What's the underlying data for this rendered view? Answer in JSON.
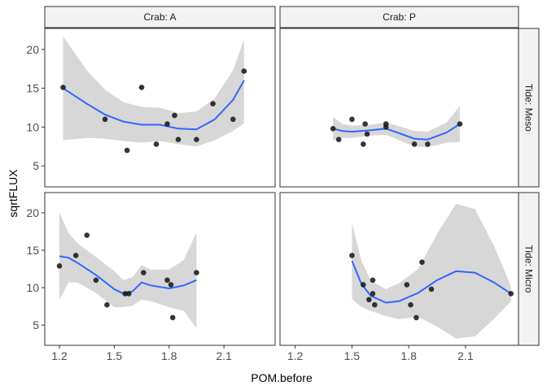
{
  "chart_data": {
    "type": "scatter",
    "facet_cols": [
      "Crab: A",
      "Crab: P"
    ],
    "facet_rows": [
      "Tide: Meso",
      "Tide: Micro"
    ],
    "xlabel": "POM.before",
    "ylabel": "sqrtFLUX",
    "xlim": [
      1.12,
      2.38
    ],
    "ylim": [
      2.3,
      22.7
    ],
    "x_ticks": [
      1.2,
      1.5,
      1.8,
      2.1
    ],
    "x_tick_labels": [
      "1.2",
      "1.5",
      "1.8",
      "2.1"
    ],
    "y_ticks": [
      5,
      10,
      15,
      20
    ],
    "y_tick_labels": [
      "5",
      "10",
      "15",
      "20"
    ],
    "smooth": "loess",
    "grid": false,
    "colors": {
      "points": "#1a1a1a",
      "smooth_line": "#3366ff",
      "ribbon": "#d3d3d3",
      "strip_fill": "#f2f2f2",
      "panel_border": "#333333"
    },
    "panels": [
      {
        "col": "Crab: A",
        "row": "Tide: Meso",
        "points": [
          {
            "x": 1.22,
            "y": 15.1
          },
          {
            "x": 1.45,
            "y": 11.0
          },
          {
            "x": 1.57,
            "y": 7.0
          },
          {
            "x": 1.65,
            "y": 15.1
          },
          {
            "x": 1.73,
            "y": 7.8
          },
          {
            "x": 1.79,
            "y": 10.4
          },
          {
            "x": 1.83,
            "y": 11.5
          },
          {
            "x": 1.85,
            "y": 8.4
          },
          {
            "x": 1.95,
            "y": 8.4
          },
          {
            "x": 2.04,
            "y": 13.0
          },
          {
            "x": 2.15,
            "y": 11.0
          },
          {
            "x": 2.21,
            "y": 17.2
          }
        ],
        "smooth": [
          {
            "x": 1.22,
            "y": 15.0,
            "lo": 8.3,
            "hi": 21.7
          },
          {
            "x": 1.35,
            "y": 13.0,
            "lo": 8.6,
            "hi": 17.3
          },
          {
            "x": 1.45,
            "y": 11.6,
            "lo": 8.5,
            "hi": 14.8
          },
          {
            "x": 1.55,
            "y": 10.7,
            "lo": 8.2,
            "hi": 13.2
          },
          {
            "x": 1.65,
            "y": 10.3,
            "lo": 8.0,
            "hi": 12.6
          },
          {
            "x": 1.75,
            "y": 10.3,
            "lo": 8.2,
            "hi": 12.5
          },
          {
            "x": 1.85,
            "y": 9.8,
            "lo": 7.8,
            "hi": 11.8
          },
          {
            "x": 1.95,
            "y": 9.7,
            "lo": 7.5,
            "hi": 12.0
          },
          {
            "x": 2.05,
            "y": 11.0,
            "lo": 8.3,
            "hi": 13.7
          },
          {
            "x": 2.15,
            "y": 13.5,
            "lo": 9.5,
            "hi": 17.3
          },
          {
            "x": 2.21,
            "y": 16.0,
            "lo": 10.5,
            "hi": 21.3
          }
        ]
      },
      {
        "col": "Crab: P",
        "row": "Tide: Meso",
        "points": [
          {
            "x": 1.4,
            "y": 9.8
          },
          {
            "x": 1.43,
            "y": 8.4
          },
          {
            "x": 1.5,
            "y": 11.0
          },
          {
            "x": 1.56,
            "y": 7.8
          },
          {
            "x": 1.57,
            "y": 10.4
          },
          {
            "x": 1.58,
            "y": 9.1
          },
          {
            "x": 1.68,
            "y": 10.4
          },
          {
            "x": 1.68,
            "y": 10.0
          },
          {
            "x": 1.83,
            "y": 7.8
          },
          {
            "x": 1.9,
            "y": 7.8
          },
          {
            "x": 2.07,
            "y": 10.4
          }
        ],
        "smooth": [
          {
            "x": 1.4,
            "y": 9.8,
            "lo": 8.3,
            "hi": 11.3
          },
          {
            "x": 1.45,
            "y": 9.5,
            "lo": 8.6,
            "hi": 10.4
          },
          {
            "x": 1.5,
            "y": 9.4,
            "lo": 8.6,
            "hi": 10.2
          },
          {
            "x": 1.6,
            "y": 9.6,
            "lo": 8.9,
            "hi": 10.3
          },
          {
            "x": 1.68,
            "y": 9.8,
            "lo": 9.0,
            "hi": 10.6
          },
          {
            "x": 1.75,
            "y": 9.2,
            "lo": 8.3,
            "hi": 10.1
          },
          {
            "x": 1.83,
            "y": 8.5,
            "lo": 7.5,
            "hi": 9.5
          },
          {
            "x": 1.9,
            "y": 8.4,
            "lo": 7.4,
            "hi": 9.4
          },
          {
            "x": 2.0,
            "y": 9.3,
            "lo": 8.0,
            "hi": 10.6
          },
          {
            "x": 2.07,
            "y": 10.4,
            "lo": 8.1,
            "hi": 12.7
          }
        ]
      },
      {
        "col": "Crab: A",
        "row": "Tide: Micro",
        "points": [
          {
            "x": 1.2,
            "y": 12.9
          },
          {
            "x": 1.29,
            "y": 14.3
          },
          {
            "x": 1.35,
            "y": 17.0
          },
          {
            "x": 1.4,
            "y": 11.0
          },
          {
            "x": 1.46,
            "y": 7.7
          },
          {
            "x": 1.56,
            "y": 9.2
          },
          {
            "x": 1.58,
            "y": 9.2
          },
          {
            "x": 1.66,
            "y": 12.0
          },
          {
            "x": 1.79,
            "y": 11.0
          },
          {
            "x": 1.81,
            "y": 10.4
          },
          {
            "x": 1.82,
            "y": 6.0
          },
          {
            "x": 1.95,
            "y": 12.0
          }
        ],
        "smooth": [
          {
            "x": 1.2,
            "y": 14.2,
            "lo": 8.4,
            "hi": 20.0
          },
          {
            "x": 1.25,
            "y": 14.0,
            "lo": 10.7,
            "hi": 17.3
          },
          {
            "x": 1.3,
            "y": 13.3,
            "lo": 10.7,
            "hi": 15.9
          },
          {
            "x": 1.4,
            "y": 11.7,
            "lo": 9.3,
            "hi": 14.1
          },
          {
            "x": 1.5,
            "y": 9.8,
            "lo": 7.4,
            "hi": 12.2
          },
          {
            "x": 1.55,
            "y": 9.2,
            "lo": 7.4,
            "hi": 11.0
          },
          {
            "x": 1.6,
            "y": 9.5,
            "lo": 7.6,
            "hi": 11.4
          },
          {
            "x": 1.65,
            "y": 10.7,
            "lo": 8.4,
            "hi": 13.0
          },
          {
            "x": 1.7,
            "y": 10.3,
            "lo": 8.2,
            "hi": 12.4
          },
          {
            "x": 1.8,
            "y": 9.9,
            "lo": 7.4,
            "hi": 12.4
          },
          {
            "x": 1.88,
            "y": 10.3,
            "lo": 6.9,
            "hi": 13.7
          },
          {
            "x": 1.95,
            "y": 11.0,
            "lo": 4.6,
            "hi": 17.4
          }
        ]
      },
      {
        "col": "Crab: P",
        "row": "Tide: Micro",
        "points": [
          {
            "x": 1.5,
            "y": 14.3
          },
          {
            "x": 1.56,
            "y": 10.4
          },
          {
            "x": 1.59,
            "y": 8.4
          },
          {
            "x": 1.61,
            "y": 9.2
          },
          {
            "x": 1.61,
            "y": 11.0
          },
          {
            "x": 1.62,
            "y": 7.7
          },
          {
            "x": 1.79,
            "y": 10.4
          },
          {
            "x": 1.81,
            "y": 7.7
          },
          {
            "x": 1.84,
            "y": 6.0
          },
          {
            "x": 1.87,
            "y": 13.4
          },
          {
            "x": 1.92,
            "y": 9.8
          },
          {
            "x": 2.34,
            "y": 9.2
          }
        ],
        "smooth": [
          {
            "x": 1.5,
            "y": 13.6,
            "lo": 8.5,
            "hi": 18.7
          },
          {
            "x": 1.55,
            "y": 10.5,
            "lo": 7.4,
            "hi": 13.6
          },
          {
            "x": 1.6,
            "y": 8.9,
            "lo": 6.9,
            "hi": 10.9
          },
          {
            "x": 1.68,
            "y": 8.0,
            "lo": 6.2,
            "hi": 9.8
          },
          {
            "x": 1.75,
            "y": 8.2,
            "lo": 5.8,
            "hi": 10.6
          },
          {
            "x": 1.85,
            "y": 9.3,
            "lo": 6.1,
            "hi": 12.5
          },
          {
            "x": 1.95,
            "y": 11.0,
            "lo": 4.8,
            "hi": 17.2
          },
          {
            "x": 2.05,
            "y": 12.2,
            "lo": 3.2,
            "hi": 21.2
          },
          {
            "x": 2.15,
            "y": 12.0,
            "lo": 3.5,
            "hi": 20.5
          },
          {
            "x": 2.25,
            "y": 10.7,
            "lo": 5.8,
            "hi": 15.6
          },
          {
            "x": 2.34,
            "y": 9.2,
            "lo": 8.2,
            "hi": 10.2
          }
        ]
      }
    ]
  }
}
